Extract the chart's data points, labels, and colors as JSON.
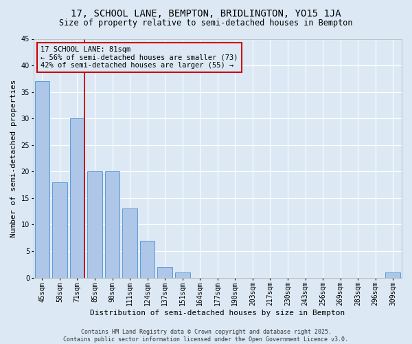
{
  "title": "17, SCHOOL LANE, BEMPTON, BRIDLINGTON, YO15 1JA",
  "subtitle": "Size of property relative to semi-detached houses in Bempton",
  "xlabel": "Distribution of semi-detached houses by size in Bempton",
  "ylabel": "Number of semi-detached properties",
  "categories": [
    "45sqm",
    "58sqm",
    "71sqm",
    "85sqm",
    "98sqm",
    "111sqm",
    "124sqm",
    "137sqm",
    "151sqm",
    "164sqm",
    "177sqm",
    "190sqm",
    "203sqm",
    "217sqm",
    "230sqm",
    "243sqm",
    "256sqm",
    "269sqm",
    "283sqm",
    "296sqm",
    "309sqm"
  ],
  "values": [
    37,
    18,
    30,
    20,
    20,
    13,
    7,
    2,
    1,
    0,
    0,
    0,
    0,
    0,
    0,
    0,
    0,
    0,
    0,
    0,
    1
  ],
  "bar_color": "#aec6e8",
  "bar_edge_color": "#5b9bd5",
  "bg_color": "#dce9f5",
  "grid_color": "#ffffff",
  "annotation_box_color": "#cc0000",
  "property_line_color": "#cc0000",
  "property_bin_index": 2,
  "annotation_text": "17 SCHOOL LANE: 81sqm\n← 56% of semi-detached houses are smaller (73)\n42% of semi-detached houses are larger (55) →",
  "footnote": "Contains HM Land Registry data © Crown copyright and database right 2025.\nContains public sector information licensed under the Open Government Licence v3.0.",
  "ylim": [
    0,
    45
  ],
  "yticks": [
    0,
    5,
    10,
    15,
    20,
    25,
    30,
    35,
    40,
    45
  ],
  "title_fontsize": 10,
  "subtitle_fontsize": 8.5,
  "ylabel_fontsize": 8,
  "xlabel_fontsize": 8,
  "tick_fontsize": 7,
  "annot_fontsize": 7.5,
  "footnote_fontsize": 6
}
